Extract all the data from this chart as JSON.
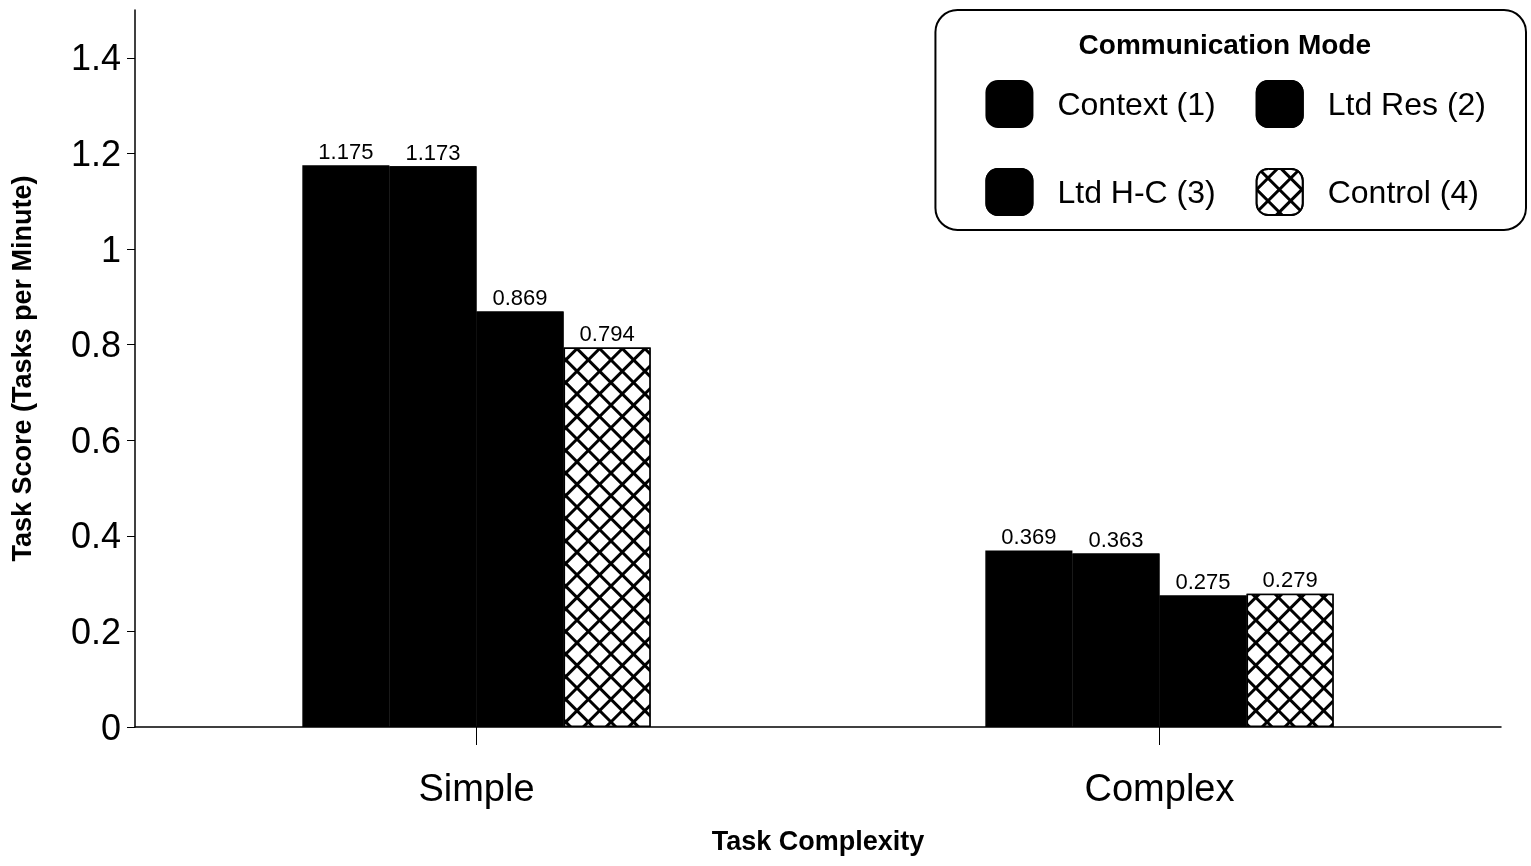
{
  "chart_data": {
    "type": "bar",
    "xlabel": "Task Complexity",
    "ylabel": "Task Score (Tasks per Minute)",
    "legend_title": "Communication Mode",
    "categories": [
      "Simple",
      "Complex"
    ],
    "series": [
      {
        "name": "Context (1)",
        "color": "#000000",
        "values": [
          1.175,
          0.369
        ]
      },
      {
        "name": "Ltd Res (2)",
        "color": "#000000",
        "values": [
          1.173,
          0.363
        ]
      },
      {
        "name": "Ltd H-C (3)",
        "color": "#000000",
        "values": [
          0.869,
          0.275
        ]
      },
      {
        "name": "Control (4)",
        "color": "#000000",
        "values": [
          0.794,
          0.279
        ]
      }
    ],
    "ylim": [
      0,
      1.5
    ],
    "yticks": [
      0,
      0.2,
      0.4,
      0.6,
      0.8,
      1,
      1.2,
      1.4
    ],
    "data_labels": true,
    "grid": false,
    "legend": "top right"
  }
}
